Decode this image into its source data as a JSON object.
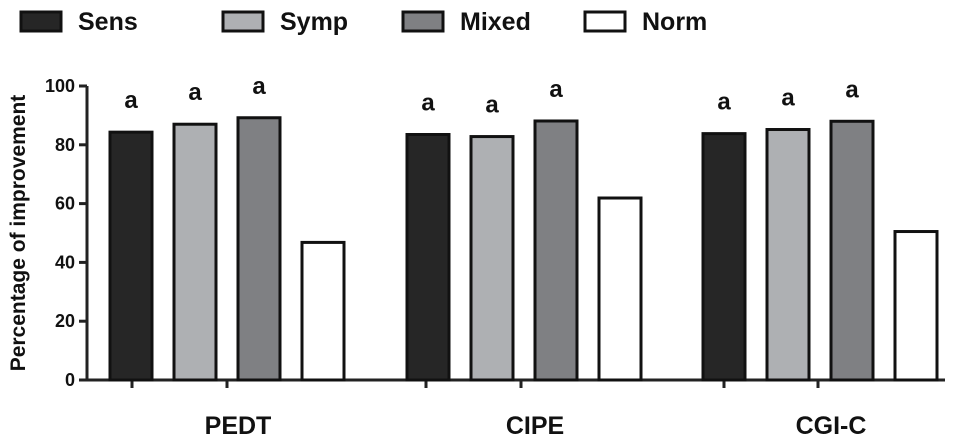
{
  "colors": {
    "Sens": "#262626",
    "Symp": "#aeb0b3",
    "Mixed": "#7f8083",
    "Norm": "#ffffff",
    "stroke": "#111111",
    "text": "#111111"
  },
  "chart_data": {
    "type": "bar",
    "title": "",
    "xlabel": "",
    "ylabel": "Percentage of improvement",
    "ylim": [
      0,
      100
    ],
    "yticks": [
      0,
      20,
      40,
      60,
      80,
      100
    ],
    "grid": false,
    "legend_position": "top",
    "categories": [
      "PEDT",
      "CIPE",
      "CGI-C"
    ],
    "series": [
      {
        "name": "Sens",
        "values": [
          84.3,
          83.5,
          83.8
        ],
        "annotations": [
          "a",
          "a",
          "a"
        ]
      },
      {
        "name": "Symp",
        "values": [
          87.0,
          82.8,
          85.2
        ],
        "annotations": [
          "a",
          "a",
          "a"
        ]
      },
      {
        "name": "Mixed",
        "values": [
          89.2,
          88.1,
          88.0
        ],
        "annotations": [
          "a",
          "a",
          "a"
        ]
      },
      {
        "name": "Norm",
        "values": [
          46.8,
          61.9,
          50.5
        ],
        "annotations": [
          "",
          "",
          ""
        ]
      }
    ]
  }
}
